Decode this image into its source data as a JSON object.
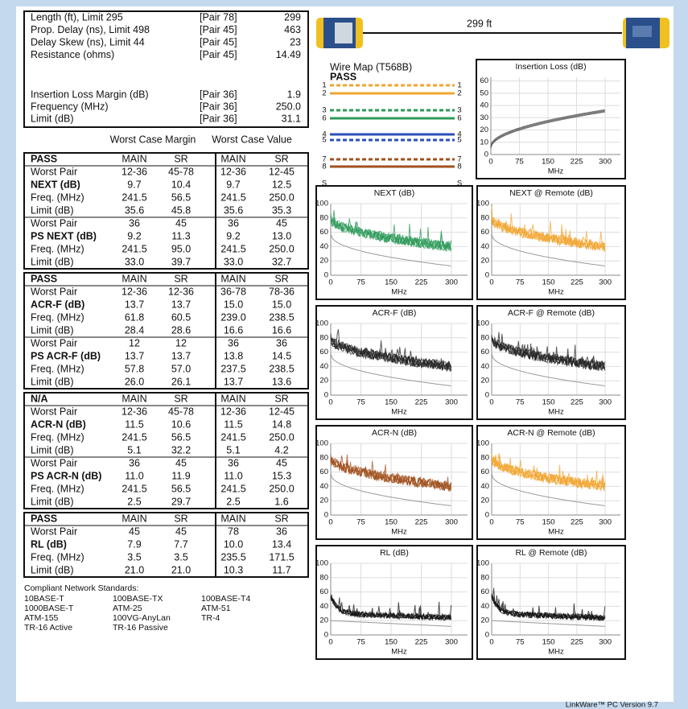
{
  "summary": {
    "rows": [
      [
        "Length (ft), Limit 295",
        "[Pair 78]",
        "299"
      ],
      [
        "Prop. Delay (ns), Limit 498",
        "[Pair 45]",
        "463"
      ],
      [
        "Delay Skew (ns), Limit 44",
        "[Pair 45]",
        "23"
      ],
      [
        "Resistance (ohms)",
        "[Pair 45]",
        "14.49"
      ],
      [
        "Insertion Loss Margin (dB)",
        "[Pair 36]",
        "1.9"
      ],
      [
        "Frequency (MHz)",
        "[Pair 36]",
        "250.0"
      ],
      [
        "Limit (dB)",
        "[Pair 36]",
        "31.1"
      ]
    ]
  },
  "headers": {
    "margin": "Worst Case Margin",
    "value": "Worst Case Value"
  },
  "groups": [
    {
      "status": "PASS",
      "cols": [
        "MAIN",
        "SR",
        "MAIN",
        "SR"
      ],
      "rows": [
        [
          "Worst Pair",
          "12-36",
          "45-78",
          "12-36",
          "12-45"
        ],
        [
          "NEXT (dB)",
          "9.7",
          "10.4",
          "9.7",
          "12.5"
        ],
        [
          "Freq. (MHz)",
          "241.5",
          "56.5",
          "241.5",
          "250.0"
        ],
        [
          "Limit (dB)",
          "35.6",
          "45.8",
          "35.6",
          "35.3"
        ],
        [
          "Worst Pair",
          "36",
          "45",
          "36",
          "45"
        ],
        [
          "PS NEXT (dB)",
          "9.2",
          "11.3",
          "9.2",
          "13.0"
        ],
        [
          "Freq. (MHz)",
          "241.5",
          "95.0",
          "241.5",
          "250.0"
        ],
        [
          "Limit (dB)",
          "33.0",
          "39.7",
          "33.0",
          "32.7"
        ]
      ]
    },
    {
      "status": "PASS",
      "cols": [
        "MAIN",
        "SR",
        "MAIN",
        "SR"
      ],
      "rows": [
        [
          "Worst Pair",
          "12-36",
          "12-36",
          "36-78",
          "78-36"
        ],
        [
          "ACR-F (dB)",
          "13.7",
          "13.7",
          "15.0",
          "15.0"
        ],
        [
          "Freq. (MHz)",
          "61.8",
          "60.5",
          "239.0",
          "238.5"
        ],
        [
          "Limit (dB)",
          "28.4",
          "28.6",
          "16.6",
          "16.6"
        ],
        [
          "Worst Pair",
          "12",
          "12",
          "36",
          "36"
        ],
        [
          "PS ACR-F (dB)",
          "13.7",
          "13.7",
          "13.8",
          "14.5"
        ],
        [
          "Freq. (MHz)",
          "57.8",
          "57.0",
          "237.5",
          "238.5"
        ],
        [
          "Limit (dB)",
          "26.0",
          "26.1",
          "13.7",
          "13.6"
        ]
      ]
    },
    {
      "status": "N/A",
      "cols": [
        "MAIN",
        "SR",
        "MAIN",
        "SR"
      ],
      "rows": [
        [
          "Worst Pair",
          "12-36",
          "45-78",
          "12-36",
          "12-45"
        ],
        [
          "ACR-N (dB)",
          "11.5",
          "10.6",
          "11.5",
          "14.8"
        ],
        [
          "Freq. (MHz)",
          "241.5",
          "56.5",
          "241.5",
          "250.0"
        ],
        [
          "Limit (dB)",
          "5.1",
          "32.2",
          "5.1",
          "4.2"
        ],
        [
          "Worst Pair",
          "36",
          "45",
          "36",
          "45"
        ],
        [
          "PS ACR-N (dB)",
          "11.0",
          "11.9",
          "11.0",
          "15.3"
        ],
        [
          "Freq. (MHz)",
          "241.5",
          "56.5",
          "241.5",
          "250.0"
        ],
        [
          "Limit (dB)",
          "2.5",
          "29.7",
          "2.5",
          "1.6"
        ]
      ]
    },
    {
      "status": "PASS",
      "cols": [
        "MAIN",
        "SR",
        "MAIN",
        "SR"
      ],
      "rows": [
        [
          "Worst Pair",
          "45",
          "45",
          "78",
          "36"
        ],
        [
          "RL (dB)",
          "7.9",
          "7.7",
          "10.0",
          "13.4"
        ],
        [
          "Freq. (MHz)",
          "3.5",
          "3.5",
          "235.5",
          "171.5"
        ],
        [
          "Limit (dB)",
          "21.0",
          "21.0",
          "10.3",
          "11.7"
        ]
      ]
    }
  ],
  "standards": {
    "title": "Compliant Network Standards:",
    "items": [
      [
        "10BASE-T",
        "100BASE-TX",
        "100BASE-T4"
      ],
      [
        "1000BASE-T",
        "ATM-25",
        "ATM-51"
      ],
      [
        "ATM-155",
        "100VG-AnyLan",
        "TR-4"
      ],
      [
        "TR-16 Active",
        "TR-16 Passive"
      ]
    ]
  },
  "link": {
    "length": "299 ft"
  },
  "wire_map": {
    "title": "Wire Map (T568B)",
    "status": "PASS",
    "pins": [
      "1",
      "2",
      "3",
      "6",
      "4",
      "5",
      "7",
      "8",
      "S"
    ]
  },
  "charts": [
    {
      "title": "Insertion Loss (dB)",
      "color": "#555555",
      "xlabel": "MHz",
      "xlim": [
        0,
        340
      ],
      "xticks": [
        0,
        75,
        150,
        225,
        300
      ],
      "ylim": [
        0,
        63
      ],
      "yticks": [
        0,
        10,
        20,
        30,
        40,
        50,
        60
      ]
    },
    {
      "title": "NEXT (dB)",
      "color": "#2e9a5a",
      "xlabel": "MHz",
      "xlim": [
        0,
        340
      ],
      "xticks": [
        0,
        75,
        150,
        225,
        300
      ],
      "ylim": [
        0,
        100
      ],
      "yticks": [
        0,
        20,
        40,
        60,
        80,
        100
      ]
    },
    {
      "title": "NEXT @ Remote (dB)",
      "color": "#f2a531",
      "xlabel": "MHz",
      "xlim": [
        0,
        340
      ],
      "xticks": [
        0,
        75,
        150,
        225,
        300
      ],
      "ylim": [
        0,
        100
      ],
      "yticks": [
        0,
        20,
        40,
        60,
        80,
        100
      ]
    },
    {
      "title": "ACR-F (dB)",
      "color": "#222222",
      "xlabel": "MHz",
      "xlim": [
        0,
        340
      ],
      "xticks": [
        0,
        75,
        150,
        225,
        300
      ],
      "ylim": [
        0,
        100
      ],
      "yticks": [
        0,
        20,
        40,
        60,
        80,
        100
      ]
    },
    {
      "title": "ACR-F @ Remote (dB)",
      "color": "#222222",
      "xlabel": "MHz",
      "xlim": [
        0,
        340
      ],
      "xticks": [
        0,
        75,
        150,
        225,
        300
      ],
      "ylim": [
        0,
        100
      ],
      "yticks": [
        0,
        20,
        40,
        60,
        80,
        100
      ]
    },
    {
      "title": "ACR-N (dB)",
      "color": "#a0501e",
      "xlabel": "MHz",
      "xlim": [
        0,
        340
      ],
      "xticks": [
        0,
        75,
        150,
        225,
        300
      ],
      "ylim": [
        0,
        100
      ],
      "yticks": [
        0,
        20,
        40,
        60,
        80,
        100
      ]
    },
    {
      "title": "ACR-N @ Remote (dB)",
      "color": "#f2a531",
      "xlabel": "MHz",
      "xlim": [
        0,
        340
      ],
      "xticks": [
        0,
        75,
        150,
        225,
        300
      ],
      "ylim": [
        0,
        100
      ],
      "yticks": [
        0,
        20,
        40,
        60,
        80,
        100
      ]
    },
    {
      "title": "RL (dB)",
      "color": "#111111",
      "xlabel": "MHz",
      "xlim": [
        0,
        340
      ],
      "xticks": [
        0,
        75,
        150,
        225,
        300
      ],
      "ylim": [
        0,
        100
      ],
      "yticks": [
        0,
        20,
        40,
        60,
        80,
        100
      ]
    },
    {
      "title": "RL @ Remote (dB)",
      "color": "#111111",
      "xlabel": "MHz",
      "xlim": [
        0,
        340
      ],
      "xticks": [
        0,
        75,
        150,
        225,
        300
      ],
      "ylim": [
        0,
        100
      ],
      "yticks": [
        0,
        20,
        40,
        60,
        80,
        100
      ]
    }
  ],
  "footer": "LinkWare™ PC Version 9.7"
}
